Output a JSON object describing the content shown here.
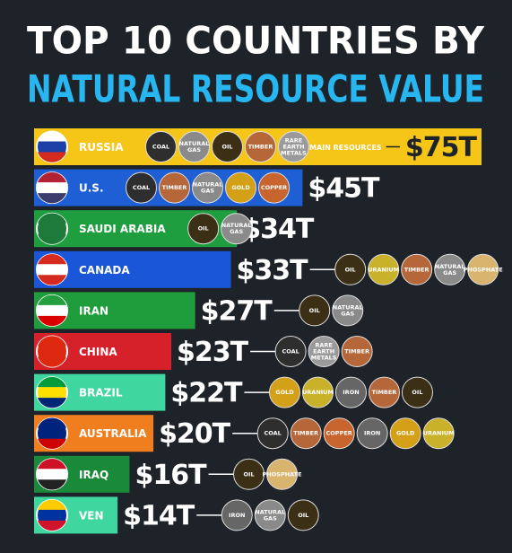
{
  "chart_data": {
    "type": "bar",
    "title": "TOP 10 COUNTRIES BY",
    "subtitle": "NATURAL RESOURCE VALUE",
    "annotation": "MAIN RESOURCES",
    "categories": [
      "RUSSIA",
      "U.S.",
      "SAUDI ARABIA",
      "CANADA",
      "IRAN",
      "CHINA",
      "BRAZIL",
      "AUSTRALIA",
      "IRAQ",
      "VEN"
    ],
    "values": [
      75,
      45,
      34,
      33,
      27,
      23,
      22,
      20,
      16,
      14
    ],
    "value_labels": [
      "$75T",
      "$45T",
      "$34T",
      "$33T",
      "$27T",
      "$23T",
      "$22T",
      "$20T",
      "$16T",
      "$14T"
    ],
    "colors": [
      "#f5c518",
      "#1f5fd6",
      "#1e9e3e",
      "#1a56d8",
      "#1f9d3c",
      "#d6202a",
      "#3fd6a0",
      "#f07e1e",
      "#1a8a3a",
      "#3fd6a0"
    ],
    "resources": [
      [
        {
          "name": "COAL",
          "color": "#2e2e2e"
        },
        {
          "name": "NATURAL GAS",
          "color": "#8a8a8a"
        },
        {
          "name": "OIL",
          "color": "#3b3015"
        },
        {
          "name": "TIMBER",
          "color": "#b5673a"
        },
        {
          "name": "RARE EARTH METALS",
          "color": "#9a9a9a"
        }
      ],
      [
        {
          "name": "COAL",
          "color": "#2e2e2e"
        },
        {
          "name": "TIMBER",
          "color": "#b5673a"
        },
        {
          "name": "NATURAL GAS",
          "color": "#8a8a8a"
        },
        {
          "name": "GOLD",
          "color": "#d4a017"
        },
        {
          "name": "COPPER",
          "color": "#c8642e"
        }
      ],
      [
        {
          "name": "OIL",
          "color": "#3b3015"
        },
        {
          "name": "NATURAL GAS",
          "color": "#8a8a8a"
        }
      ],
      [
        {
          "name": "OIL",
          "color": "#3b3015"
        },
        {
          "name": "URANIUM",
          "color": "#c9b12a"
        },
        {
          "name": "TIMBER",
          "color": "#b5673a"
        },
        {
          "name": "NATURAL GAS",
          "color": "#8a8a8a"
        },
        {
          "name": "PHOSPHATE",
          "color": "#d9b46e"
        }
      ],
      [
        {
          "name": "OIL",
          "color": "#3b3015"
        },
        {
          "name": "NATURAL GAS",
          "color": "#8a8a8a"
        }
      ],
      [
        {
          "name": "COAL",
          "color": "#2e2e2e"
        },
        {
          "name": "RARE EARTH METALS",
          "color": "#9a9a9a"
        },
        {
          "name": "TIMBER",
          "color": "#b5673a"
        }
      ],
      [
        {
          "name": "GOLD",
          "color": "#d4a017"
        },
        {
          "name": "URANIUM",
          "color": "#c9b12a"
        },
        {
          "name": "IRON",
          "color": "#666666"
        },
        {
          "name": "TIMBER",
          "color": "#b5673a"
        },
        {
          "name": "OIL",
          "color": "#3b3015"
        }
      ],
      [
        {
          "name": "COAL",
          "color": "#2e2e2e"
        },
        {
          "name": "TIMBER",
          "color": "#b5673a"
        },
        {
          "name": "COPPER",
          "color": "#c8642e"
        },
        {
          "name": "IRON",
          "color": "#666666"
        },
        {
          "name": "GOLD",
          "color": "#d4a017"
        },
        {
          "name": "URANIUM",
          "color": "#c9b12a"
        }
      ],
      [
        {
          "name": "OIL",
          "color": "#3b3015"
        },
        {
          "name": "PHOSPHATE",
          "color": "#d9b46e"
        }
      ],
      [
        {
          "name": "IRON",
          "color": "#666666"
        },
        {
          "name": "NATURAL GAS",
          "color": "#8a8a8a"
        },
        {
          "name": "OIL",
          "color": "#3b3015"
        }
      ]
    ]
  }
}
